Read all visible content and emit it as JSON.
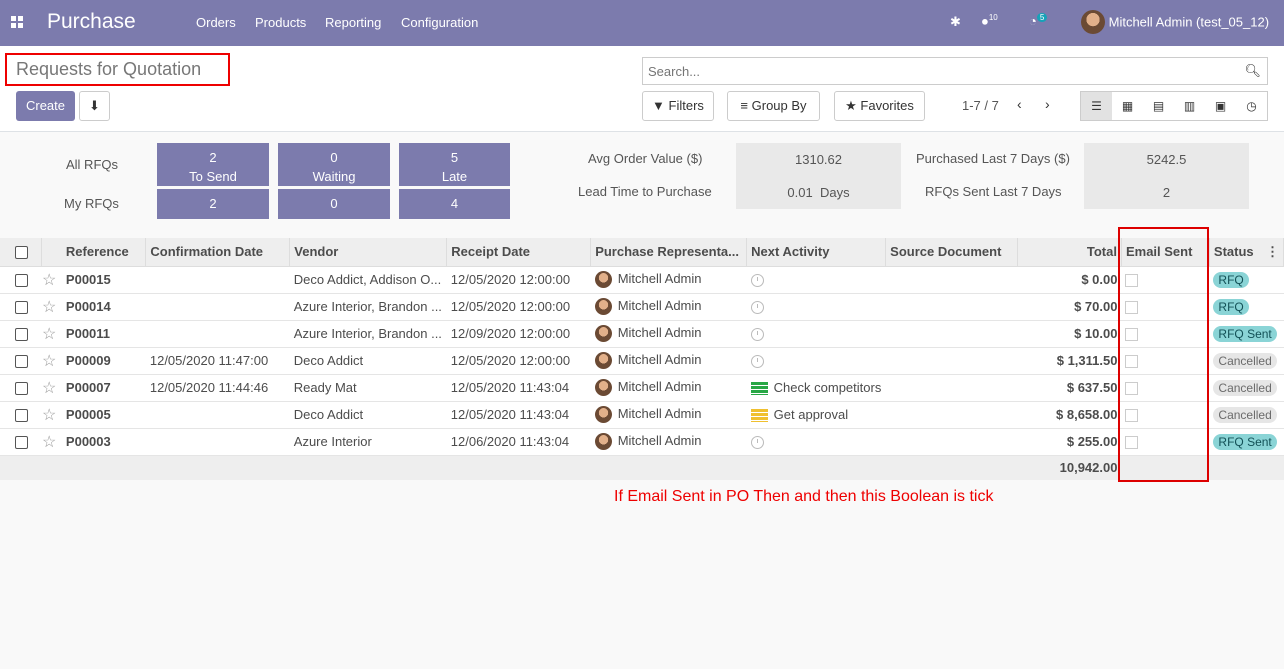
{
  "nav": {
    "brand": "Purchase",
    "menus": [
      "Orders",
      "Products",
      "Reporting",
      "Configuration"
    ],
    "messages_count": "10",
    "activities_count": "5",
    "user": "Mitchell Admin (test_05_12)"
  },
  "control": {
    "title": "Requests for Quotation",
    "create_label": "Create",
    "search_placeholder": "Search...",
    "filters_label": "Filters",
    "groupby_label": "Group By",
    "favorites_label": "Favorites",
    "pager": "1-7 / 7"
  },
  "dashboard": {
    "all_rfqs_label": "All RFQs",
    "my_rfqs_label": "My RFQs",
    "to_send": {
      "count": "2",
      "label": "To Send",
      "mine": "2"
    },
    "waiting": {
      "count": "0",
      "label": "Waiting",
      "mine": "0"
    },
    "late": {
      "count": "5",
      "label": "Late",
      "mine": "4"
    },
    "avg_order_label": "Avg Order Value ($)",
    "avg_order_value": "1310.62",
    "lead_time_label": "Lead Time to Purchase",
    "lead_time_value": "0.01  Days",
    "purchased_label": "Purchased Last 7 Days ($)",
    "purchased_value": "5242.5",
    "rfqs_sent_label": "RFQs Sent Last 7 Days",
    "rfqs_sent_value": "2"
  },
  "table": {
    "headers": {
      "reference": "Reference",
      "confirmation_date": "Confirmation Date",
      "vendor": "Vendor",
      "receipt_date": "Receipt Date",
      "representative": "Purchase Representa...",
      "next_activity": "Next Activity",
      "source_document": "Source Document",
      "total": "Total",
      "email_sent": "Email Sent",
      "status": "Status"
    },
    "rows": [
      {
        "ref": "P00015",
        "conf": "",
        "vendor": "Deco Addict, Addison O...",
        "receipt": "12/05/2020 12:00:00",
        "rep": "Mitchell Admin",
        "activity": "",
        "activity_icon": "clock-icon",
        "source": "",
        "total": "$ 0.00",
        "status": "RFQ",
        "status_kind": "rfq"
      },
      {
        "ref": "P00014",
        "conf": "",
        "vendor": "Azure Interior, Brandon ...",
        "receipt": "12/05/2020 12:00:00",
        "rep": "Mitchell Admin",
        "activity": "",
        "activity_icon": "clock-icon",
        "source": "",
        "total": "$ 70.00",
        "status": "RFQ",
        "status_kind": "rfq"
      },
      {
        "ref": "P00011",
        "conf": "",
        "vendor": "Azure Interior, Brandon ...",
        "receipt": "12/09/2020 12:00:00",
        "rep": "Mitchell Admin",
        "activity": "",
        "activity_icon": "clock-icon",
        "source": "",
        "total": "$ 10.00",
        "status": "RFQ Sent",
        "status_kind": "rfq"
      },
      {
        "ref": "P00009",
        "conf": "12/05/2020 11:47:00",
        "vendor": "Deco Addict",
        "receipt": "12/05/2020 12:00:00",
        "rep": "Mitchell Admin",
        "activity": "",
        "activity_icon": "clock-icon",
        "source": "",
        "total": "$ 1,311.50",
        "status": "Cancelled",
        "status_kind": "cancel"
      },
      {
        "ref": "P00007",
        "conf": "12/05/2020 11:44:46",
        "vendor": "Ready Mat",
        "receipt": "12/05/2020 11:43:04",
        "rep": "Mitchell Admin",
        "activity": "Check competitors",
        "activity_icon": "activity-green-icon",
        "source": "",
        "total": "$ 637.50",
        "status": "Cancelled",
        "status_kind": "cancel"
      },
      {
        "ref": "P00005",
        "conf": "",
        "vendor": "Deco Addict",
        "receipt": "12/05/2020 11:43:04",
        "rep": "Mitchell Admin",
        "activity": "Get approval",
        "activity_icon": "activity-yellow-icon",
        "source": "",
        "total": "$ 8,658.00",
        "status": "Cancelled",
        "status_kind": "cancel"
      },
      {
        "ref": "P00003",
        "conf": "",
        "vendor": "Azure Interior",
        "receipt": "12/06/2020 11:43:04",
        "rep": "Mitchell Admin",
        "activity": "",
        "activity_icon": "clock-icon",
        "source": "",
        "total": "$ 255.00",
        "status": "RFQ Sent",
        "status_kind": "rfq"
      }
    ],
    "grand_total": "10,942.00"
  },
  "annotation": "If Email Sent in PO Then and then this Boolean is tick",
  "colors": {
    "brand": "#7c7bad",
    "annotation": "#e00000",
    "status_rfq": "#8ad4d6",
    "status_cancel": "#e6e6e6",
    "activity_green": "#28a745",
    "activity_yellow": "#f0c02f"
  }
}
